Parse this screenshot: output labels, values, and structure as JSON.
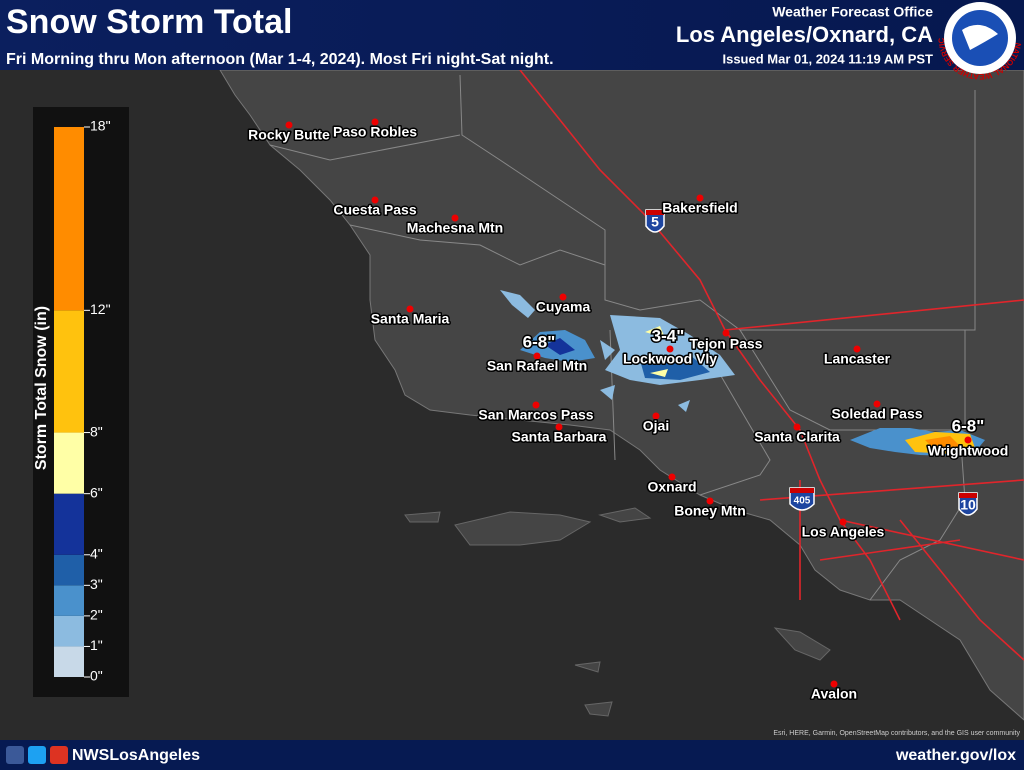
{
  "header": {
    "title": "Snow Storm Total",
    "subtitle": "Fri Morning thru Mon afternoon (Mar 1-4, 2024). Most Fri night-Sat night.",
    "office_label": "Weather Forecast Office",
    "office": "Los Angeles/Oxnard, CA",
    "issued": "Issued Mar 01, 2024 11:19 AM PST",
    "logo_text": "NATIONAL WEATHER SERVICE"
  },
  "legend": {
    "title": "Storm Total Snow (in)",
    "ticks": [
      {
        "value": 0,
        "label": "0\""
      },
      {
        "value": 1,
        "label": "1\""
      },
      {
        "value": 2,
        "label": "2\""
      },
      {
        "value": 3,
        "label": "3\""
      },
      {
        "value": 4,
        "label": "4\""
      },
      {
        "value": 6,
        "label": "6\""
      },
      {
        "value": 8,
        "label": "8\""
      },
      {
        "value": 12,
        "label": "12\""
      },
      {
        "value": 18,
        "label": "18\""
      }
    ],
    "colors": [
      "#c8d9e8",
      "#8cbbe0",
      "#4a91cc",
      "#1f5fa8",
      "#14339a",
      "#ffffa6",
      "#ffc20e",
      "#ff8c00"
    ]
  },
  "map": {
    "places": [
      "Rocky Butte",
      "Paso Robles",
      "Cuesta Pass",
      "Machesna Mtn",
      "Bakersfield",
      "Cuyama",
      "Santa Maria",
      "San Rafael Mtn",
      "Tejon Pass",
      "Lockwood Vly",
      "Lancaster",
      "San Marcos Pass",
      "Santa Barbara",
      "Ojai",
      "Santa Clarita",
      "Soledad Pass",
      "Wrightwood",
      "Oxnard",
      "Boney Mtn",
      "Los Angeles",
      "Avalon"
    ],
    "amounts": [
      "6-8\"",
      "3-4\"",
      "6-8\""
    ],
    "shields": [
      "5",
      "405",
      "10"
    ],
    "credits": "Esri, HERE, Garmin, OpenStreetMap contributors, and the GIS user community"
  },
  "footer": {
    "social": "NWSLosAngeles",
    "url": "weather.gov/lox"
  }
}
